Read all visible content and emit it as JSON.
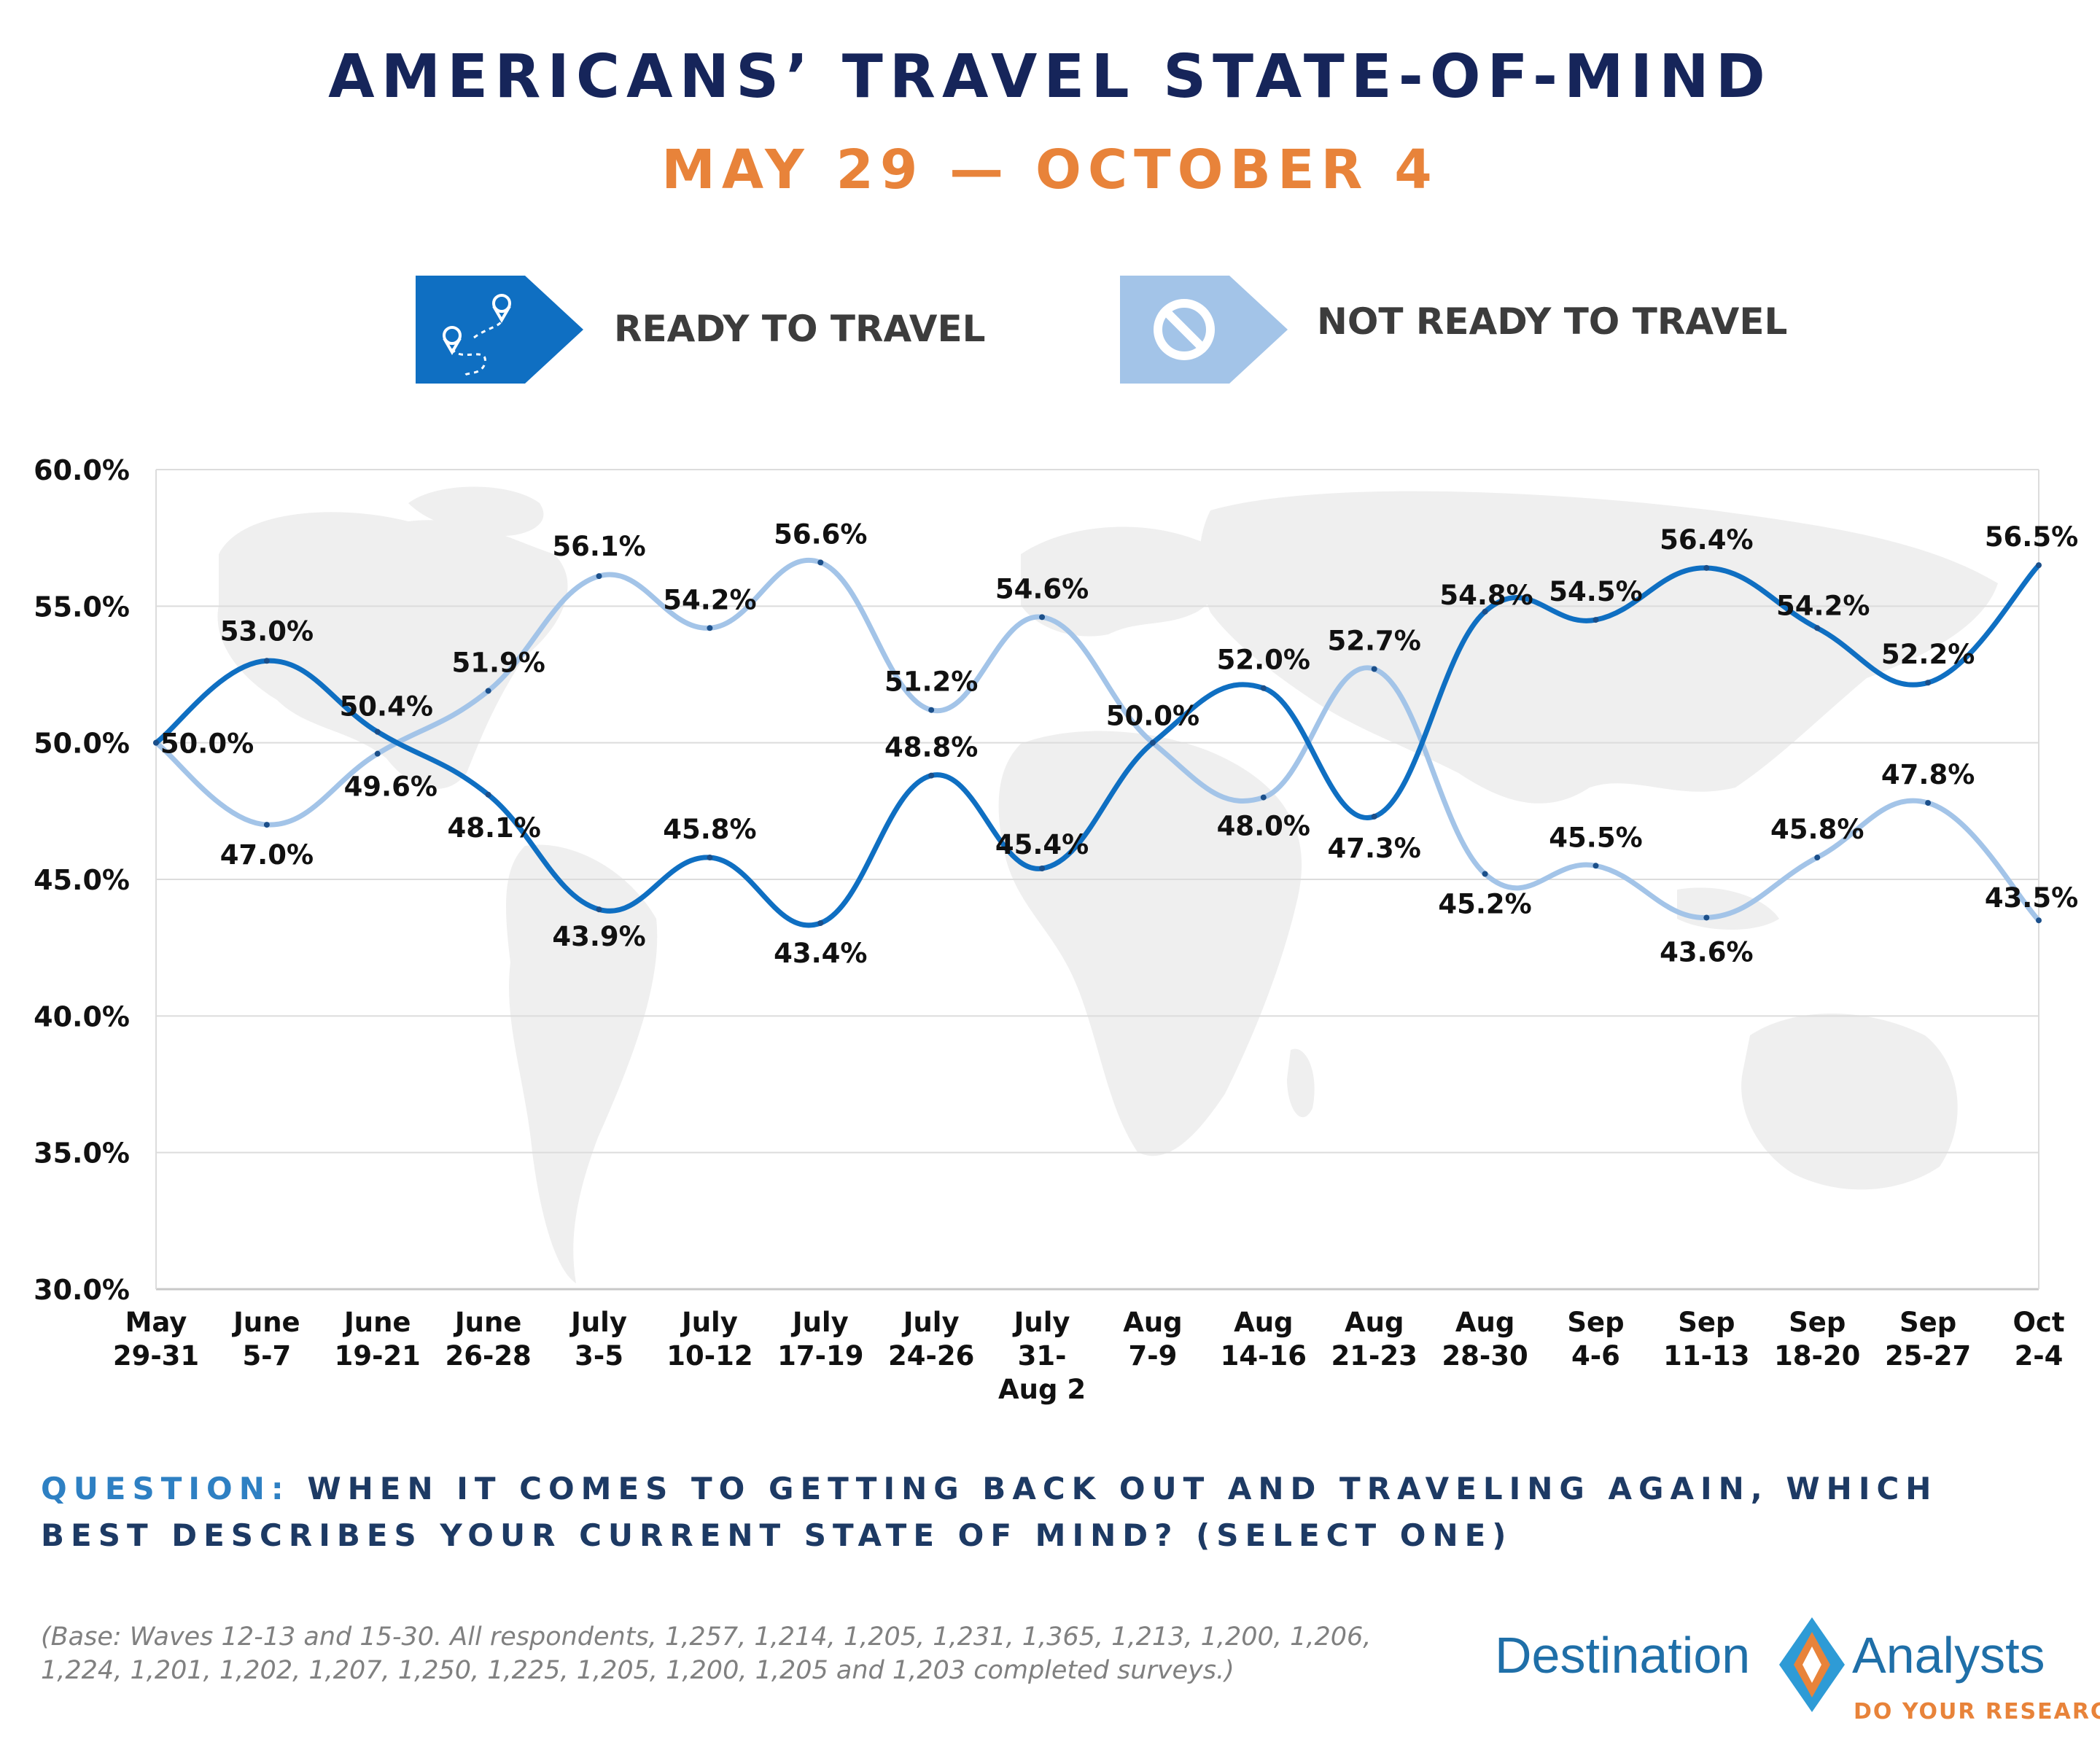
{
  "title": "AMERICANS’ TRAVEL STATE-OF-MIND",
  "subtitle": "MAY 29 — OCTOBER 4",
  "legend": [
    {
      "label": "READY TO TRAVEL",
      "icon": "map-route-icon",
      "color": "#0f6fc2"
    },
    {
      "label": "NOT READY TO TRAVEL",
      "icon": "prohibited-icon",
      "color": "#a3c4e8"
    }
  ],
  "question": {
    "label": "QUESTION:",
    "text": "WHEN IT COMES TO GETTING BACK OUT AND TRAVELING AGAIN, WHICH BEST DESCRIBES YOUR CURRENT STATE OF MIND? (SELECT ONE)"
  },
  "base_note": "(Base: Waves 12-13 and 15-30. All respondents, 1,257, 1,214, 1,205, 1,231, 1,365, 1,213, 1,200, 1,206, 1,224, 1,201, 1,202, 1,207, 1,250, 1,225, 1,205, 1,200, 1,205 and 1,203 completed surveys.)",
  "logo": {
    "name_left": "Destination",
    "name_right": "Analysts",
    "tagline": "DO YOUR RESEARCH"
  },
  "chart_data": {
    "type": "line",
    "title": "AMERICANS’ TRAVEL STATE-OF-MIND",
    "subtitle": "MAY 29 — OCTOBER 4",
    "categories": [
      [
        "May",
        "29-31"
      ],
      [
        "June",
        "5-7"
      ],
      [
        "June",
        "19-21"
      ],
      [
        "June",
        "26-28"
      ],
      [
        "July",
        "3-5"
      ],
      [
        "July",
        "10-12"
      ],
      [
        "July",
        "17-19"
      ],
      [
        "July",
        "24-26"
      ],
      [
        "July",
        "31-",
        "Aug 2"
      ],
      [
        "Aug",
        "7-9"
      ],
      [
        "Aug",
        "14-16"
      ],
      [
        "Aug",
        "21-23"
      ],
      [
        "Aug",
        "28-30"
      ],
      [
        "Sep",
        "4-6"
      ],
      [
        "Sep",
        "11-13"
      ],
      [
        "Sep",
        "18-20"
      ],
      [
        "Sep",
        "25-27"
      ],
      [
        "Oct",
        "2-4"
      ]
    ],
    "series": [
      {
        "name": "READY TO TRAVEL",
        "color": "#0f6fc2",
        "values": [
          50.0,
          53.0,
          50.4,
          48.1,
          43.9,
          45.8,
          43.4,
          48.8,
          45.4,
          50.0,
          52.0,
          47.3,
          54.8,
          54.5,
          56.4,
          54.2,
          52.2,
          56.5
        ],
        "labels": [
          "",
          "53.0%",
          "50.4%",
          "48.1%",
          "43.9%",
          "45.8%",
          "43.4%",
          "48.8%",
          "45.4%",
          "50.0%",
          "52.0%",
          "47.3%",
          "54.8%",
          "54.5%",
          "56.4%",
          "54.2%",
          "52.2%",
          "56.5%"
        ]
      },
      {
        "name": "NOT READY TO TRAVEL",
        "color": "#a3c4e8",
        "values": [
          50.0,
          47.0,
          49.6,
          51.9,
          56.1,
          54.2,
          56.6,
          51.2,
          54.6,
          50.0,
          48.0,
          52.7,
          45.2,
          45.5,
          43.6,
          45.8,
          47.8,
          43.5
        ],
        "labels": [
          "50.0%",
          "47.0%",
          "49.6%",
          "51.9%",
          "56.1%",
          "54.2%",
          "56.6%",
          "51.2%",
          "54.6%",
          "",
          "48.0%",
          "52.7%",
          "45.2%",
          "45.5%",
          "43.6%",
          "45.8%",
          "47.8%",
          "43.5%"
        ]
      }
    ],
    "y_ticks": [
      "30.0%",
      "35.0%",
      "40.0%",
      "45.0%",
      "50.0%",
      "55.0%",
      "60.0%"
    ],
    "ylim": [
      30,
      60
    ],
    "grid": true,
    "legend_position": "top"
  }
}
